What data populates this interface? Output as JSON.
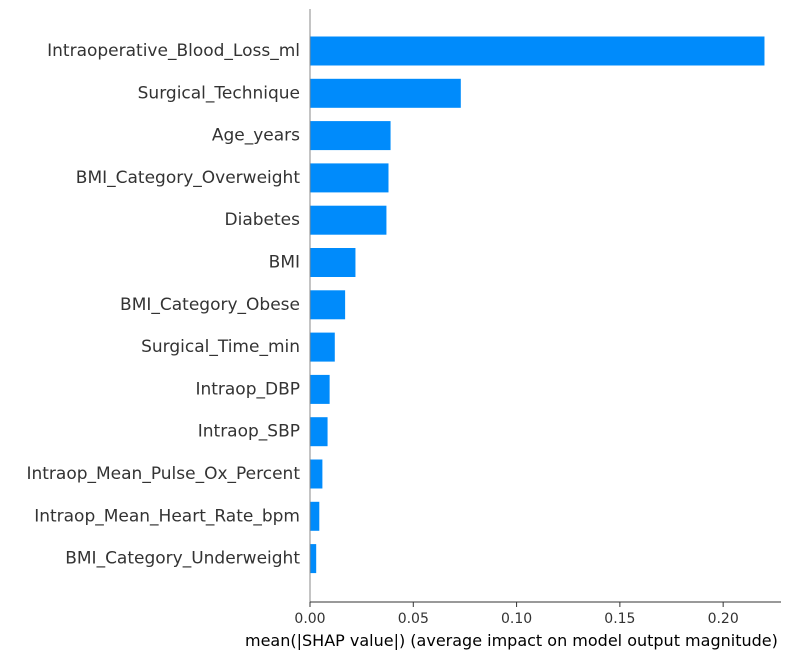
{
  "chart_data": {
    "type": "bar",
    "orientation": "horizontal",
    "title": "",
    "xlabel": "mean(|SHAP value|) (average impact on model output magnitude)",
    "ylabel": "",
    "xlim": [
      0,
      0.228
    ],
    "xticks": [
      0.0,
      0.05,
      0.1,
      0.15,
      0.2
    ],
    "xtick_labels": [
      "0.00",
      "0.05",
      "0.10",
      "0.15",
      "0.20"
    ],
    "grid": false,
    "legend": "none",
    "bar_color": "#008bfb",
    "categories": [
      "Intraoperative_Blood_Loss_ml",
      "Surgical_Technique",
      "Age_years",
      "BMI_Category_Overweight",
      "Diabetes",
      "BMI",
      "BMI_Category_Obese",
      "Surgical_Time_min",
      "Intraop_DBP",
      "Intraop_SBP",
      "Intraop_Mean_Pulse_Ox_Percent",
      "Intraop_Mean_Heart_Rate_bpm",
      "BMI_Category_Underweight"
    ],
    "values": [
      0.22,
      0.073,
      0.039,
      0.038,
      0.037,
      0.022,
      0.017,
      0.012,
      0.0095,
      0.0085,
      0.006,
      0.0045,
      0.003
    ]
  }
}
